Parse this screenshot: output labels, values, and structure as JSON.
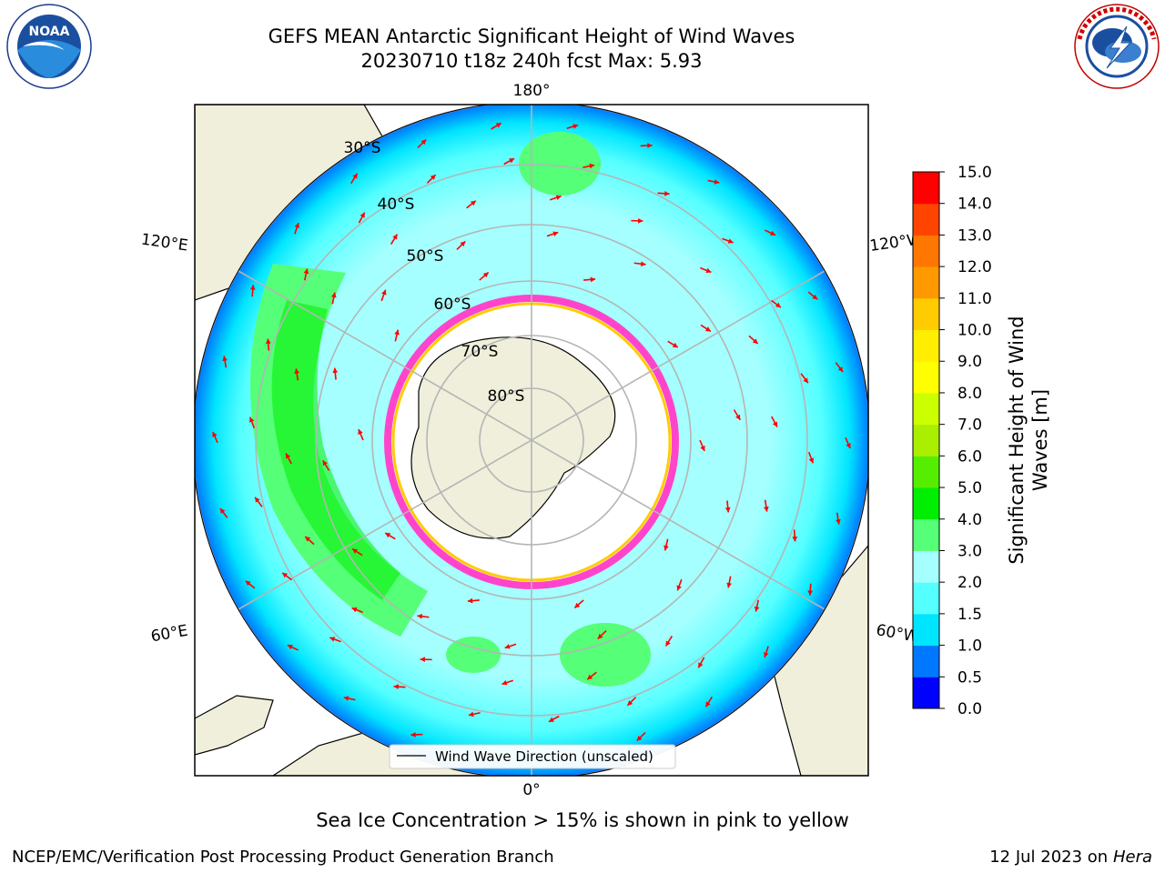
{
  "header": {
    "title_line1": "GEFS MEAN Antarctic Significant Height of Wind Waves",
    "title_line2": "20230710 t18z 240h fcst   Max: 5.93"
  },
  "logos": {
    "noaa": {
      "text": "NOAA",
      "ring_text": "NATIONAL OCEANIC AND ATMOSPHERIC ADMINISTRATION · U.S. DEPARTMENT OF COMMERCE"
    },
    "nws": {
      "ring_text": "NATIONAL WEATHER SERVICE"
    }
  },
  "map": {
    "projection": "south-polar-stereographic",
    "longitude_labels": {
      "top": "180°",
      "bottom": "0°",
      "left_upper": "120°E",
      "left_lower": "60°E",
      "right_upper": "120°W",
      "right_lower": "60°W"
    },
    "latitude_labels": [
      "30°S",
      "40°S",
      "50°S",
      "60°S",
      "70°S",
      "80°S"
    ],
    "legend_label": "Wind Wave Direction (unscaled)",
    "arrow_color": "#ff0000",
    "land_color": "#efefdb"
  },
  "colorbar": {
    "label": "Significant Height of Wind Waves [m]",
    "ticks": [
      "0.0",
      "0.5",
      "1.0",
      "1.5",
      "2.0",
      "3.0",
      "4.0",
      "5.0",
      "6.0",
      "7.0",
      "8.0",
      "9.0",
      "10.0",
      "11.0",
      "12.0",
      "13.0",
      "14.0",
      "15.0"
    ],
    "colors": [
      "#0000ff",
      "#0077ff",
      "#00e5ff",
      "#55ffff",
      "#a5ffff",
      "#55ff77",
      "#00ee00",
      "#55ee00",
      "#aaee00",
      "#ccff00",
      "#ffff00",
      "#ffee00",
      "#ffcc00",
      "#ff9900",
      "#ff7700",
      "#ff4400",
      "#ff0000"
    ]
  },
  "caption": "Sea Ice Concentration > 15% is shown in pink to yellow",
  "footer": {
    "left": "NCEP/EMC/Verification Post Processing Product Generation Branch",
    "right_date": "12 Jul 2023 on",
    "right_machine": "Hera"
  }
}
